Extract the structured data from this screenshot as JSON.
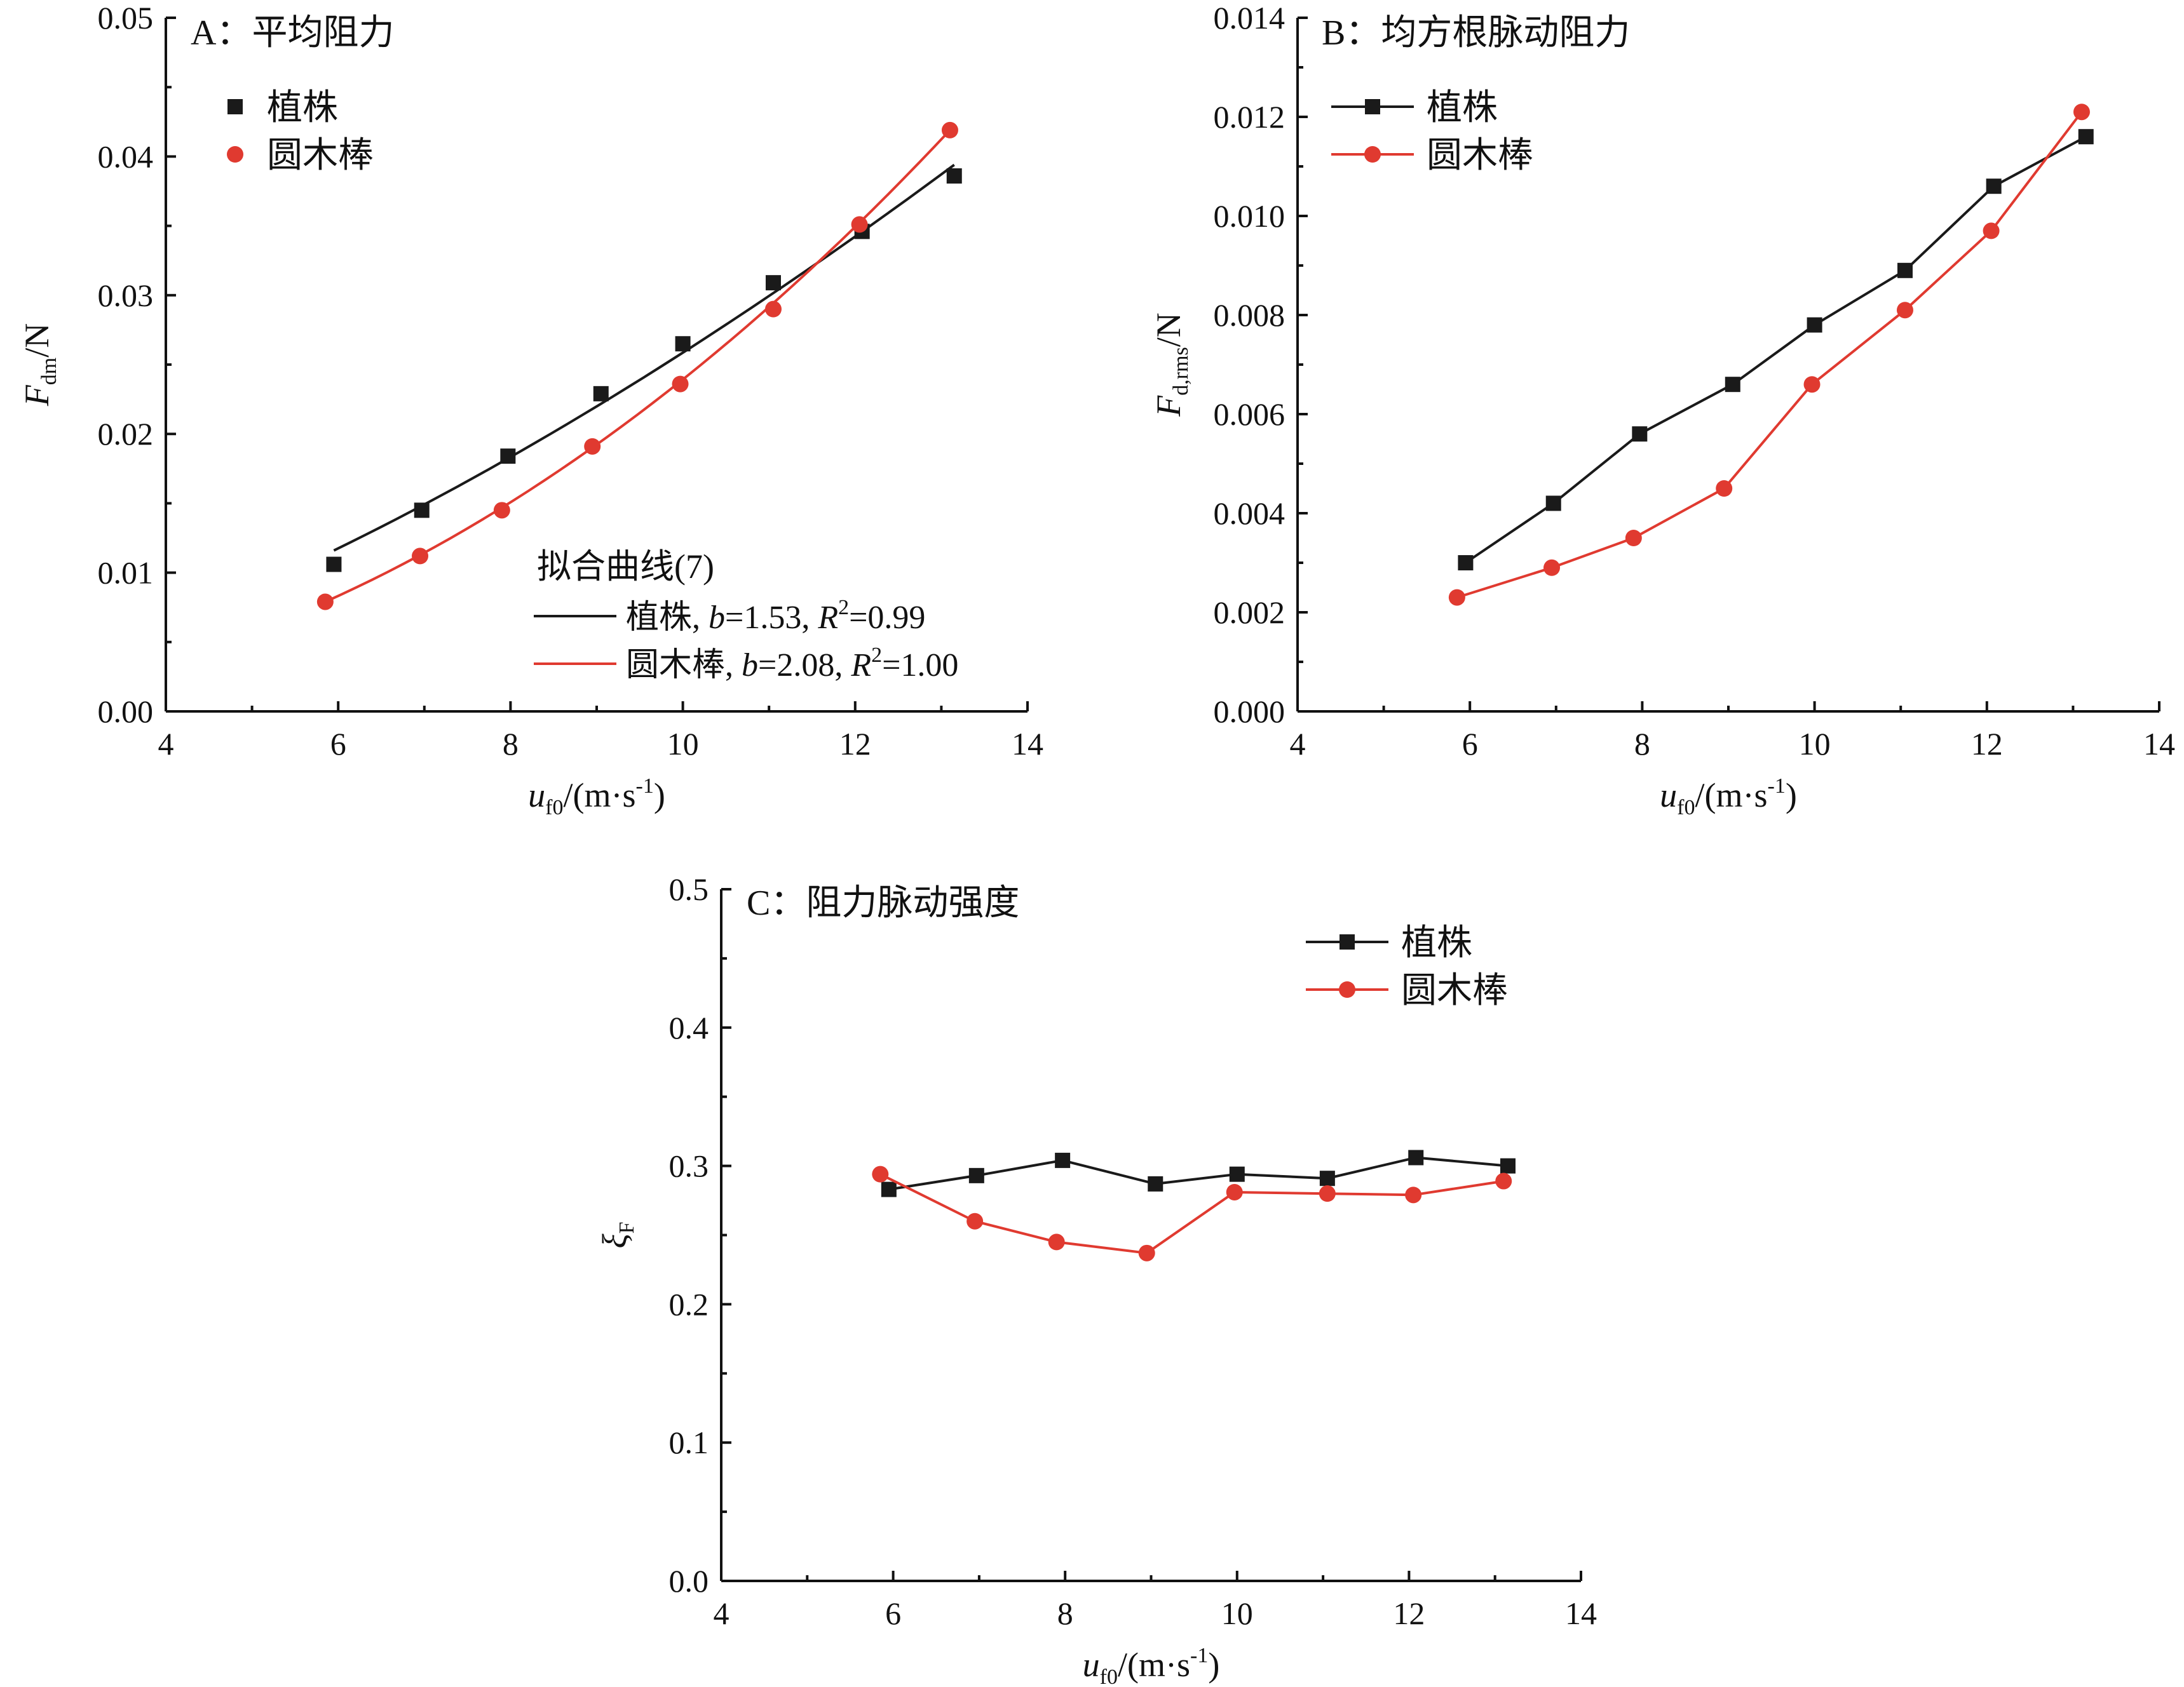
{
  "chart_data": [
    {
      "id": "A",
      "type": "scatter",
      "title": "A：平均阻力",
      "xlabel": {
        "base": "u",
        "sub": "f0",
        "rest": "/(m·s",
        "sup": "-1",
        "end": ")"
      },
      "ylabel": {
        "base": "F",
        "sub": "dm",
        "rest": "/N"
      },
      "xlim": [
        4,
        14
      ],
      "ylim": [
        0,
        0.05
      ],
      "xticks": [
        "4",
        "6",
        "8",
        "10",
        "12",
        "14"
      ],
      "yticks": [
        "0.00",
        "0.01",
        "0.02",
        "0.03",
        "0.04",
        "0.05"
      ],
      "legend_position": "top-left",
      "series": [
        {
          "name": "植株",
          "marker": "square",
          "color": "#1a1a1a",
          "x": [
            5.95,
            6.97,
            7.97,
            9.05,
            10.0,
            11.05,
            12.08,
            13.15
          ],
          "y": [
            0.0106,
            0.0145,
            0.0184,
            0.0229,
            0.0265,
            0.0309,
            0.0346,
            0.0386
          ]
        },
        {
          "name": "圆木棒",
          "marker": "circle",
          "color": "#e03a30",
          "x": [
            5.85,
            6.95,
            7.9,
            8.95,
            9.97,
            11.05,
            12.05,
            13.1
          ],
          "y": [
            0.0079,
            0.0112,
            0.0145,
            0.0191,
            0.0236,
            0.029,
            0.0351,
            0.0419
          ]
        }
      ],
      "fit": {
        "title": "拟合曲线(7)",
        "curves": [
          {
            "label": "植株, ",
            "b_label": "b",
            "b_value": "=1.53, ",
            "r_label": "R",
            "r_sup": "2",
            "r_value": "=0.99",
            "color": "#1a1a1a",
            "x": [
              5.95,
              13.15
            ],
            "b": 1.53,
            "y0": 0.0116,
            "y1": 0.0394
          },
          {
            "label": "圆木棒, ",
            "b_label": "b",
            "b_value": "=2.08, ",
            "r_label": "R",
            "r_sup": "2",
            "r_value": "=1.00",
            "color": "#e03a30",
            "x": [
              5.85,
              13.1
            ],
            "b": 2.08,
            "y0": 0.0079,
            "y1": 0.0419
          }
        ]
      }
    },
    {
      "id": "B",
      "type": "line",
      "title": "B：均方根脉动阻力",
      "xlabel": {
        "base": "u",
        "sub": "f0",
        "rest": "/(m·s",
        "sup": "-1",
        "end": ")"
      },
      "ylabel": {
        "base": "F",
        "sub": "d,rms",
        "rest": "/N"
      },
      "xlim": [
        4,
        14
      ],
      "ylim": [
        0,
        0.014
      ],
      "xticks": [
        "4",
        "6",
        "8",
        "10",
        "12",
        "14"
      ],
      "yticks": [
        "0.000",
        "0.002",
        "0.004",
        "0.006",
        "0.008",
        "0.010",
        "0.012",
        "0.014"
      ],
      "legend_position": "top-left",
      "series": [
        {
          "name": "植株",
          "marker": "square",
          "color": "#1a1a1a",
          "x": [
            5.95,
            6.97,
            7.97,
            9.05,
            10.0,
            11.05,
            12.08,
            13.15
          ],
          "y": [
            0.003,
            0.0042,
            0.0056,
            0.0066,
            0.0078,
            0.0089,
            0.0106,
            0.0116
          ]
        },
        {
          "name": "圆木棒",
          "marker": "circle",
          "color": "#e03a30",
          "x": [
            5.85,
            6.95,
            7.9,
            8.95,
            9.97,
            11.05,
            12.05,
            13.1
          ],
          "y": [
            0.0023,
            0.0029,
            0.0035,
            0.0045,
            0.0066,
            0.0081,
            0.0097,
            0.0121
          ]
        }
      ]
    },
    {
      "id": "C",
      "type": "line",
      "title": "C：阻力脉动强度",
      "xlabel": {
        "base": "u",
        "sub": "f0",
        "rest": "/(m·s",
        "sup": "-1",
        "end": ")"
      },
      "ylabel": {
        "base": "ξ",
        "sub": "F",
        "rest": ""
      },
      "xlim": [
        4,
        14
      ],
      "ylim": [
        0,
        0.5
      ],
      "xticks": [
        "4",
        "6",
        "8",
        "10",
        "12",
        "14"
      ],
      "yticks": [
        "0.0",
        "0.1",
        "0.2",
        "0.3",
        "0.4",
        "0.5"
      ],
      "legend_position": "top-right",
      "series": [
        {
          "name": "植株",
          "marker": "square",
          "color": "#1a1a1a",
          "x": [
            5.95,
            6.97,
            7.97,
            9.05,
            10.0,
            11.05,
            12.08,
            13.15
          ],
          "y": [
            0.283,
            0.293,
            0.304,
            0.287,
            0.294,
            0.291,
            0.306,
            0.3
          ]
        },
        {
          "name": "圆木棒",
          "marker": "circle",
          "color": "#e03a30",
          "x": [
            5.85,
            6.95,
            7.9,
            8.95,
            9.97,
            11.05,
            12.05,
            13.1
          ],
          "y": [
            0.294,
            0.26,
            0.245,
            0.237,
            0.281,
            0.28,
            0.279,
            0.289
          ]
        }
      ]
    }
  ]
}
